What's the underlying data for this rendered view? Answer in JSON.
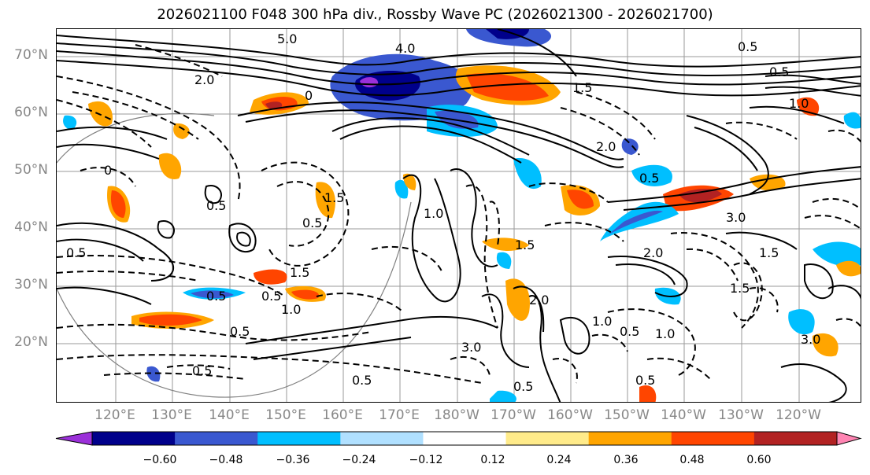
{
  "title": "2026021100 F048 300 hPa div., Rossby Wave PC (2026021300 - 2026021700)",
  "map": {
    "projection": "cylindrical",
    "region": "North Pacific",
    "lat_labels": [
      "70°N",
      "60°N",
      "50°N",
      "40°N",
      "30°N",
      "20°N"
    ],
    "lon_labels": [
      "120°E",
      "130°E",
      "140°E",
      "150°E",
      "160°E",
      "170°E",
      "180°W",
      "170°W",
      "160°W",
      "150°W",
      "140°W",
      "130°W",
      "120°W"
    ],
    "contour_labels": [
      "5.0",
      "4.0",
      "0.5",
      "2.0",
      "1.5",
      "0",
      "0.5",
      "2.0",
      "1.0",
      "0.5",
      "1.5",
      "0.5",
      "0",
      "0.5",
      "1.0",
      "1.5",
      "0.5",
      "1.0",
      "3.0",
      "2.0",
      "1.5",
      "0.5",
      "3.0",
      "0.5",
      "2.0",
      "1.0",
      "0.5",
      "1.5",
      "0.5",
      "0.5",
      "3.0",
      "0.5",
      "1.0",
      "1.5",
      "0.5",
      "0.5"
    ]
  },
  "colorbar": {
    "colors": [
      "#9b30d9",
      "#00008b",
      "#3a58d0",
      "#00bfff",
      "#b0e0ff",
      "#ffffff",
      "#ffeb8a",
      "#ffa500",
      "#ff4500",
      "#b22222",
      "#ff85b3"
    ],
    "ticks": [
      "−0.60",
      "−0.48",
      "−0.36",
      "−0.24",
      "−0.12",
      "0.12",
      "0.24",
      "0.36",
      "0.48",
      "0.60"
    ]
  },
  "shading_colors": {
    "neg_strong": "#9b30d9",
    "neg_dark": "#00008b",
    "neg_mid": "#3a58d0",
    "neg_light": "#00bfff",
    "pos_light": "#ffa500",
    "pos_mid": "#ff4500",
    "pos_strong": "#b22222"
  }
}
